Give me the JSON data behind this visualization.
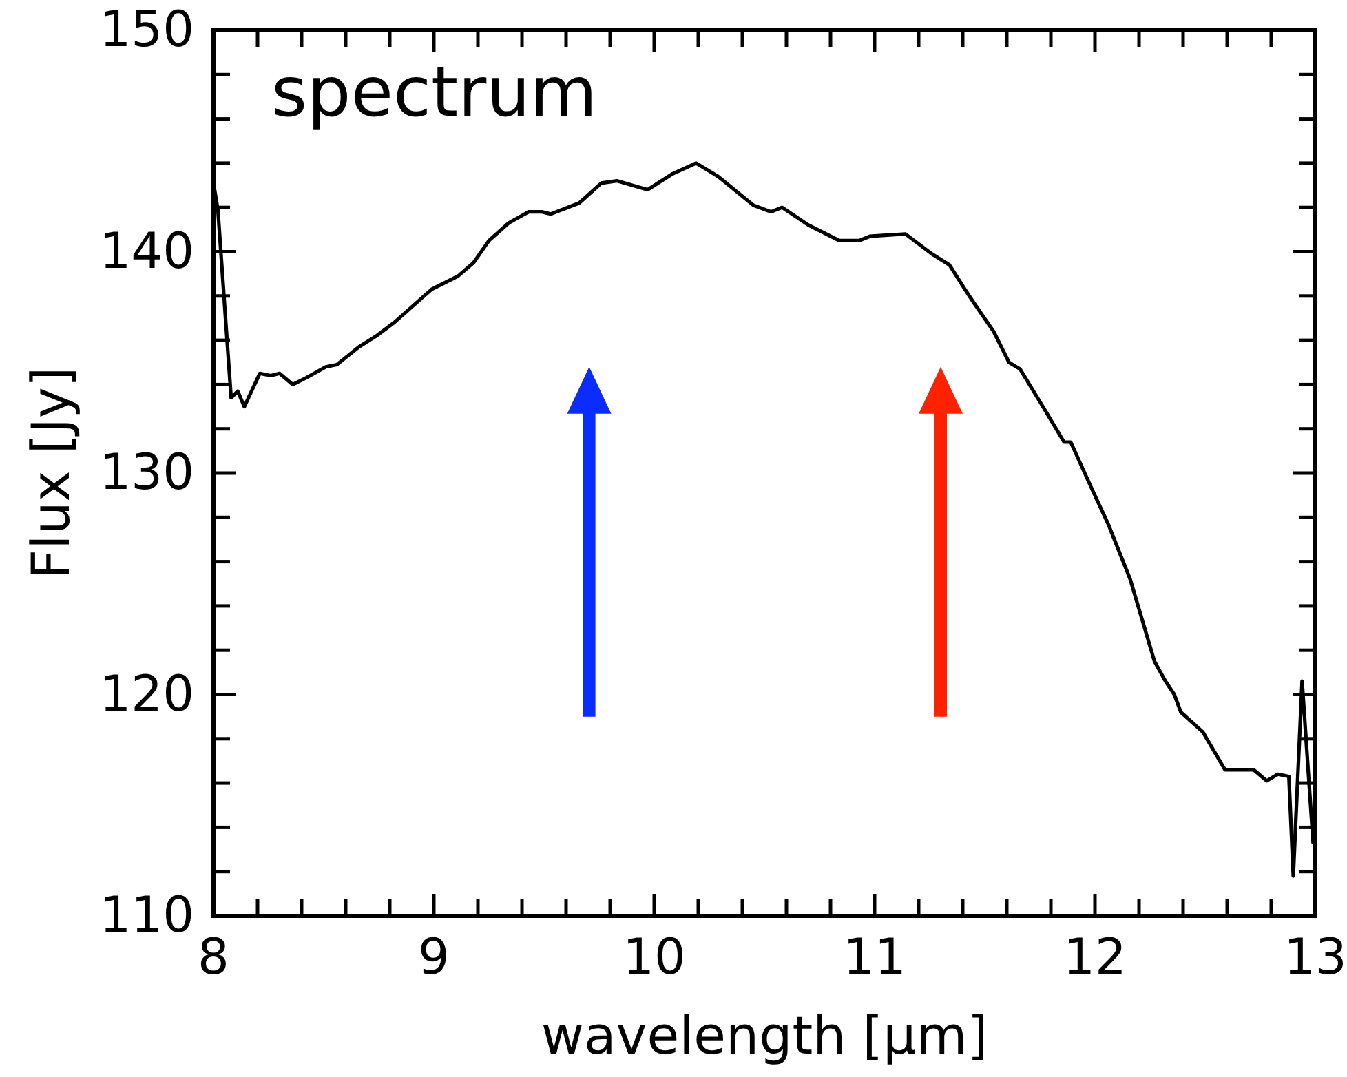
{
  "chart_data": {
    "type": "line",
    "title": "spectrum",
    "xlabel": "wavelength [µm]",
    "ylabel": "Flux [Jy]",
    "xlim": [
      8,
      13
    ],
    "ylim": [
      110,
      150
    ],
    "xticks": [
      8,
      {
        "value": 8.2,
        "label": null
      },
      {
        "value": 8.4,
        "label": null
      },
      {
        "value": 8.6,
        "label": null
      },
      {
        "value": 8.8,
        "label": null
      },
      9,
      {
        "value": 9.2,
        "label": null
      },
      {
        "value": 9.4,
        "label": null
      },
      {
        "value": 9.6,
        "label": null
      },
      {
        "value": 9.8,
        "label": null
      },
      10,
      {
        "value": 10.2,
        "label": null
      },
      {
        "value": 10.4,
        "label": null
      },
      {
        "value": 10.6,
        "label": null
      },
      {
        "value": 10.8,
        "label": null
      },
      11,
      {
        "value": 11.2,
        "label": null
      },
      {
        "value": 11.4,
        "label": null
      },
      {
        "value": 11.6,
        "label": null
      },
      {
        "value": 11.8,
        "label": null
      },
      12,
      {
        "value": 12.2,
        "label": null
      },
      {
        "value": 12.4,
        "label": null
      },
      {
        "value": 12.6,
        "label": null
      },
      {
        "value": 12.8,
        "label": null
      },
      13
    ],
    "yticks": [
      110,
      {
        "value": 112,
        "label": null
      },
      {
        "value": 114,
        "label": null
      },
      {
        "value": 116,
        "label": null
      },
      {
        "value": 118,
        "label": null
      },
      120,
      {
        "value": 122,
        "label": null
      },
      {
        "value": 124,
        "label": null
      },
      {
        "value": 126,
        "label": null
      },
      {
        "value": 128,
        "label": null
      },
      130,
      {
        "value": 132,
        "label": null
      },
      {
        "value": 134,
        "label": null
      },
      {
        "value": 136,
        "label": null
      },
      {
        "value": 138,
        "label": null
      },
      140,
      {
        "value": 142,
        "label": null
      },
      {
        "value": 144,
        "label": null
      },
      {
        "value": 146,
        "label": null
      },
      {
        "value": 148,
        "label": null
      },
      150
    ],
    "grid": false,
    "legend": false,
    "marker": "none",
    "line_style": "solid",
    "series": [
      {
        "color": "#000000",
        "x": [
          8.0,
          8.02,
          8.08,
          8.11,
          8.14,
          8.21,
          8.26,
          8.3,
          8.36,
          8.42,
          8.51,
          8.56,
          8.66,
          8.74,
          8.82,
          8.99,
          9.11,
          9.18,
          9.25,
          9.34,
          9.43,
          9.49,
          9.53,
          9.66,
          9.76,
          9.83,
          9.97,
          10.08,
          10.19,
          10.29,
          10.45,
          10.53,
          10.58,
          10.7,
          10.84,
          10.93,
          10.98,
          11.14,
          11.26,
          11.34,
          11.41,
          11.45,
          11.54,
          11.61,
          11.66,
          11.77,
          11.86,
          11.89,
          11.99,
          12.06,
          12.16,
          12.27,
          12.32,
          12.36,
          12.39,
          12.49,
          12.59,
          12.64,
          12.72,
          12.78,
          12.83,
          12.88,
          12.9,
          12.94,
          12.99
        ],
        "values": [
          143.1,
          141.9,
          133.4,
          133.7,
          133.0,
          134.5,
          134.4,
          134.5,
          134.0,
          134.3,
          134.8,
          134.9,
          135.7,
          136.2,
          136.8,
          138.3,
          138.9,
          139.5,
          140.5,
          141.3,
          141.8,
          141.8,
          141.7,
          142.2,
          143.1,
          143.2,
          142.8,
          143.5,
          144.0,
          143.4,
          142.1,
          141.8,
          142.0,
          141.2,
          140.5,
          140.5,
          140.7,
          140.8,
          139.9,
          139.4,
          138.3,
          137.7,
          136.4,
          135.0,
          134.7,
          132.9,
          131.4,
          131.4,
          129.2,
          127.7,
          125.2,
          121.5,
          120.6,
          120.0,
          119.2,
          118.3,
          116.6,
          116.6,
          116.6,
          116.1,
          116.4,
          116.3,
          111.8,
          120.6,
          113.3
        ]
      }
    ]
  }
}
